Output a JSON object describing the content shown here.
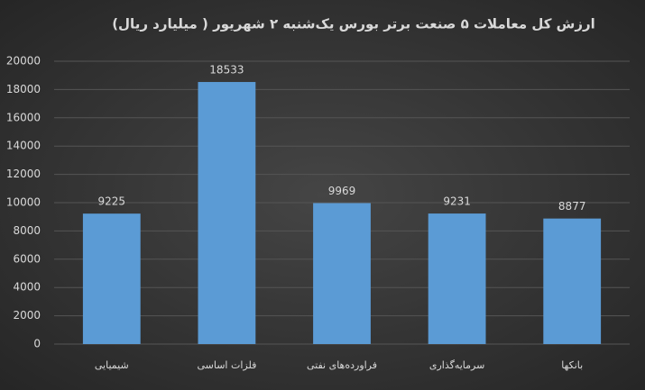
{
  "chart_data": {
    "type": "bar",
    "title": "ارزش کل معاملات ۵ صنعت برتر بورس یک‌شنبه ۲ شهریور ( میلیارد ریال)",
    "categories": [
      "شیمیایی",
      "فلزات اساسی",
      "فراورده‌های نفتی",
      "سرمایه‌گذاری",
      "بانکها"
    ],
    "values": [
      9225,
      18533,
      9969,
      9231,
      8877
    ],
    "color": "#5b9bd5",
    "ylim": [
      0,
      20000
    ],
    "yticks": [
      0,
      2000,
      4000,
      6000,
      8000,
      10000,
      12000,
      14000,
      16000,
      18000,
      20000
    ],
    "grid": true
  }
}
